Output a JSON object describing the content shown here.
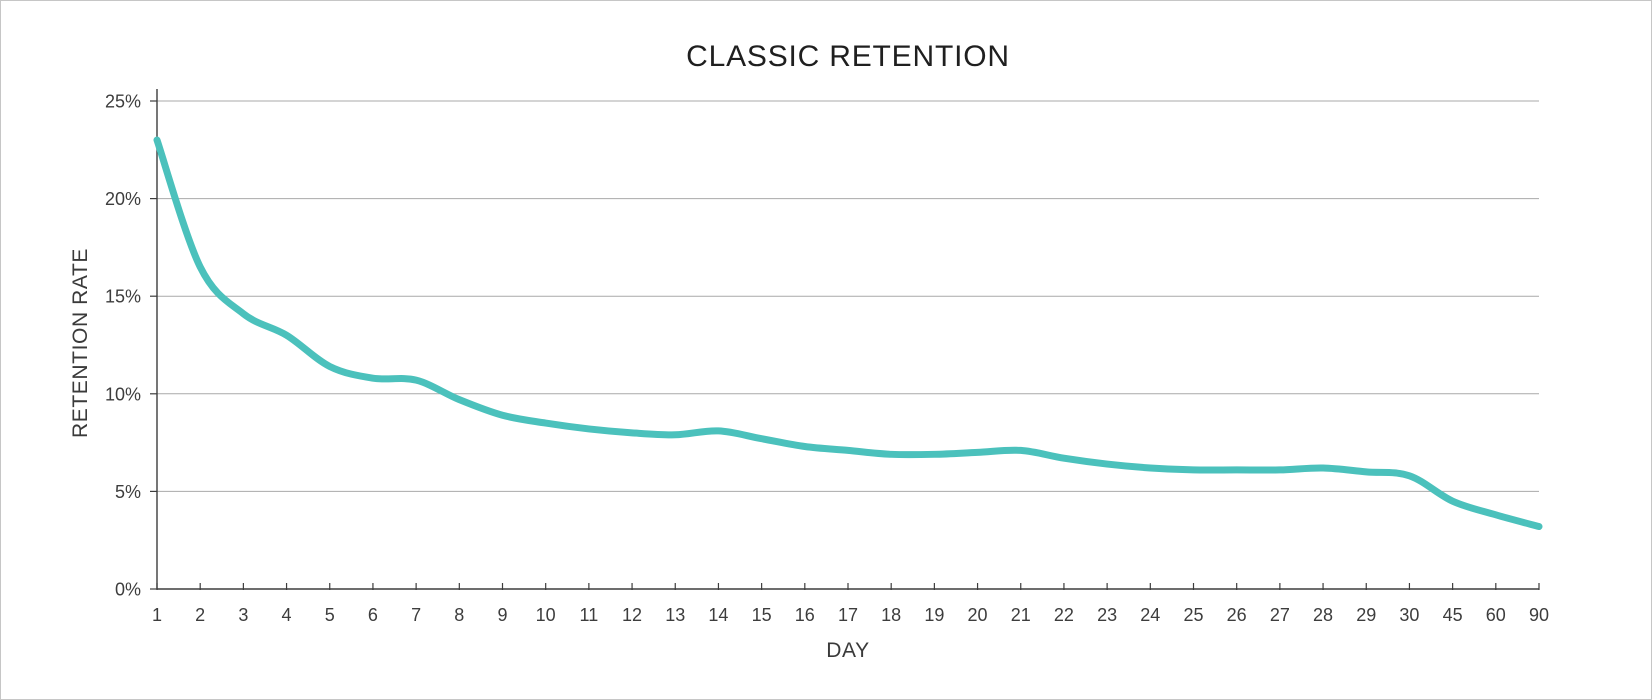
{
  "page": {
    "background": "#ffffff",
    "border_color": "#c6c6c6"
  },
  "chart_data": {
    "type": "line",
    "title": "CLASSIC RETENTION",
    "xlabel": "DAY",
    "ylabel": "RETENTION RATE",
    "categories": [
      "1",
      "2",
      "3",
      "4",
      "5",
      "6",
      "7",
      "8",
      "9",
      "10",
      "11",
      "12",
      "13",
      "14",
      "15",
      "16",
      "17",
      "18",
      "19",
      "20",
      "21",
      "22",
      "23",
      "24",
      "25",
      "26",
      "27",
      "28",
      "29",
      "30",
      "45",
      "60",
      "90"
    ],
    "series": [
      {
        "name": "retention-rate-percent",
        "color": "#4bc1bc",
        "values": [
          23.0,
          16.5,
          14.1,
          13.0,
          11.4,
          10.8,
          10.7,
          9.7,
          8.9,
          8.5,
          8.2,
          8.0,
          7.9,
          8.1,
          7.7,
          7.3,
          7.1,
          6.9,
          6.9,
          7.0,
          7.1,
          6.7,
          6.4,
          6.2,
          6.1,
          6.1,
          6.1,
          6.2,
          6.0,
          5.8,
          4.5,
          3.8,
          3.2
        ]
      }
    ],
    "ylim": [
      0,
      25
    ],
    "yticks": [
      {
        "value": 0,
        "label": "0%"
      },
      {
        "value": 5,
        "label": "5%"
      },
      {
        "value": 10,
        "label": "10%"
      },
      {
        "value": 15,
        "label": "15%"
      },
      {
        "value": 20,
        "label": "20%"
      },
      {
        "value": 25,
        "label": "25%"
      }
    ],
    "grid": true,
    "legend": "none",
    "colors": {
      "line": "#4bc1bc",
      "grid": "#a9a9a9",
      "axis": "#3d3d3d",
      "tick_text": "#3d3d3d",
      "title_text": "#1f1f1f"
    }
  }
}
